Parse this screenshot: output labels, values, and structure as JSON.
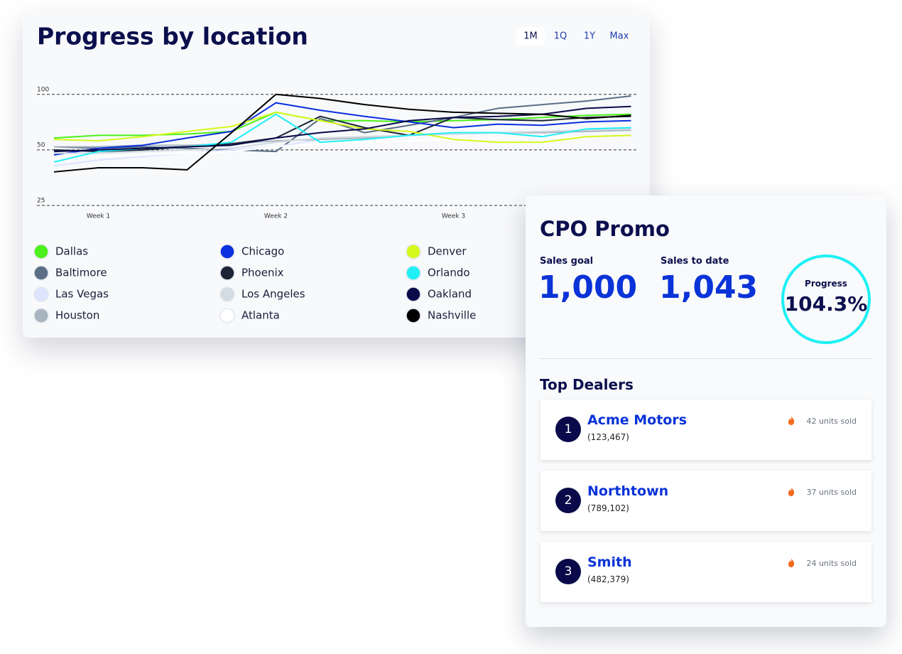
{
  "chart_data": {
    "type": "line",
    "title": "Progress by location",
    "range_buttons": [
      "1M",
      "1Q",
      "1Y",
      "Max"
    ],
    "selected_range": 0,
    "categories": [
      null,
      "Week 1",
      null,
      null,
      null,
      "Week 2",
      null,
      null,
      null,
      "Week 3",
      null,
      null,
      null,
      null
    ],
    "ylim": [
      25,
      112
    ],
    "yticks": [
      25,
      50,
      100
    ],
    "log_scale": true,
    "grid": true,
    "series": [
      {
        "name": "Dallas",
        "color": "#4cf01a",
        "values": [
          58,
          60,
          60,
          61,
          63,
          80,
          72,
          72,
          71,
          72,
          73,
          75,
          77,
          78
        ]
      },
      {
        "name": "Baltimore",
        "color": "#5a6e85",
        "values": [
          52,
          51,
          52,
          51,
          50,
          49,
          74,
          62,
          68,
          75,
          84,
          88,
          92,
          98
        ]
      },
      {
        "name": "Las Vegas",
        "color": "#dde4ff",
        "values": [
          41,
          44,
          46,
          48,
          50,
          52,
          57,
          59,
          60,
          61,
          62,
          63,
          64,
          66
        ]
      },
      {
        "name": "Houston",
        "color": "#a8b4bf",
        "values": [
          52,
          52,
          53,
          53,
          54,
          56,
          57,
          58,
          60,
          61,
          62,
          62,
          63,
          64
        ]
      },
      {
        "name": "Chicago",
        "color": "#0a2fdf",
        "values": [
          47,
          51,
          53,
          58,
          63,
          90,
          82,
          76,
          71,
          66,
          69,
          68,
          71,
          72
        ]
      },
      {
        "name": "Phoenix",
        "color": "#1c2535",
        "values": [
          50,
          49,
          50,
          52,
          54,
          58,
          76,
          66,
          60,
          75,
          73,
          72,
          75,
          76
        ]
      },
      {
        "name": "Los Angeles",
        "color": "#d3dbe3",
        "values": [
          48,
          48,
          49,
          50,
          51,
          55,
          58,
          59,
          60,
          61,
          62,
          63,
          64,
          65
        ]
      },
      {
        "name": "Atlanta",
        "color": "#ffffff",
        "values": [
          45,
          46,
          47,
          48,
          49,
          52,
          54,
          55,
          56,
          57,
          58,
          58,
          59,
          60
        ]
      },
      {
        "name": "Denver",
        "color": "#d6f91c",
        "values": [
          57,
          56,
          59,
          63,
          67,
          80,
          72,
          65,
          63,
          57,
          55,
          55,
          59,
          60
        ]
      },
      {
        "name": "Orlando",
        "color": "#20f0f5",
        "values": [
          43,
          49,
          51,
          52,
          55,
          78,
          55,
          57,
          60,
          62,
          62,
          59,
          65,
          66
        ]
      },
      {
        "name": "Oakland",
        "color": "#0a0a4a",
        "values": [
          49,
          50,
          51,
          52,
          53,
          58,
          62,
          65,
          72,
          75,
          76,
          78,
          84,
          86
        ]
      },
      {
        "name": "Nashville",
        "color": "#000000",
        "values": [
          38,
          40,
          40,
          39,
          62,
          100,
          95,
          88,
          83,
          80,
          79,
          78,
          74,
          77
        ]
      }
    ]
  },
  "promo": {
    "title": "CPO Promo",
    "stats": [
      {
        "label": "Sales goal",
        "value": "1,000"
      },
      {
        "label": "Sales to date",
        "value": "1,043"
      }
    ],
    "progress": {
      "label": "Progress",
      "value": "104.3%"
    },
    "dealers_title": "Top Dealers",
    "dealers": [
      {
        "rank": "1",
        "name": "Acme Motors",
        "code": "(123,467)",
        "units": "42 units sold"
      },
      {
        "rank": "2",
        "name": "Northtown",
        "code": "(789,102)",
        "units": "37 units sold"
      },
      {
        "rank": "3",
        "name": "Smith",
        "code": "(482,379)",
        "units": "24 units sold"
      }
    ]
  }
}
